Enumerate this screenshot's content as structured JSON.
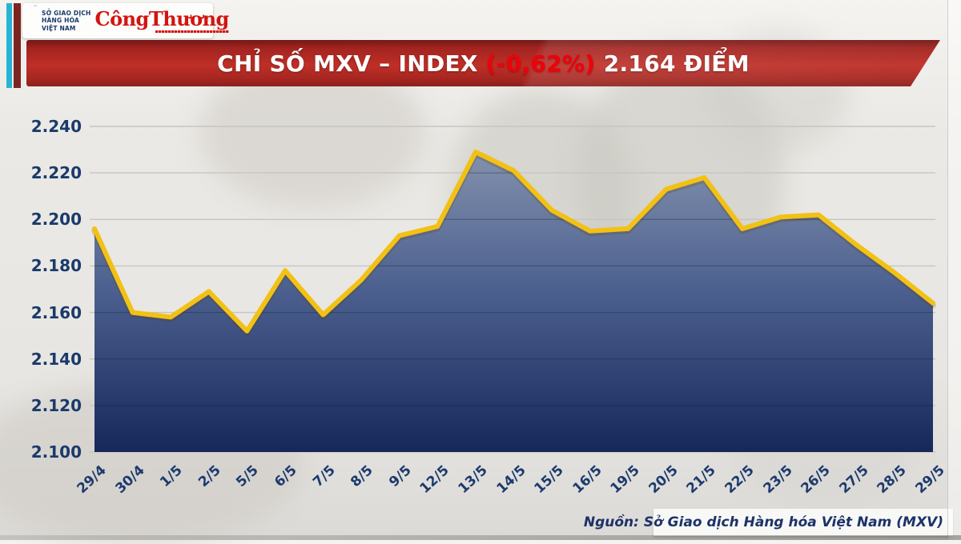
{
  "header": {
    "mxv_logo": {
      "lines": [
        "SỞ GIAO DỊCH",
        "HÀNG HÓA",
        "VIỆT NAM"
      ],
      "trademark": "™"
    },
    "congthuong_logo": "CôngThương"
  },
  "banner": {
    "title_prefix": "CHỈ SỐ MXV – INDEX",
    "change": "(-0,62%)",
    "value_text": "2.164 ĐIỂM",
    "change_color": "#ef0009",
    "banner_color": "#bf2f27"
  },
  "chart_data": {
    "type": "area",
    "title": "CHỈ SỐ MXV – INDEX (-0,62%) 2.164 ĐIỂM",
    "x": [
      "29/4",
      "30/4",
      "1/5",
      "2/5",
      "5/5",
      "6/5",
      "7/5",
      "8/5",
      "9/5",
      "12/5",
      "13/5",
      "14/5",
      "15/5",
      "16/5",
      "19/5",
      "20/5",
      "21/5",
      "22/5",
      "23/5",
      "26/5",
      "27/5",
      "28/5",
      "29/5"
    ],
    "series": [
      {
        "name": "MXV-Index",
        "values": [
          2196,
          2160,
          2158,
          2169,
          2152,
          2178,
          2159,
          2174,
          2193,
          2197,
          2229,
          2221,
          2204,
          2195,
          2196,
          2213,
          2218,
          2196,
          2201,
          2202,
          2189,
          2177,
          2164
        ]
      }
    ],
    "ylim": [
      2100,
      2240
    ],
    "ytick_step": 20,
    "ytick_labels": [
      "2.100",
      "2.120",
      "2.140",
      "2.160",
      "2.180",
      "2.200",
      "2.220",
      "2.240"
    ],
    "grid": "horizontal",
    "legend": "none",
    "line_color": "#f2c114",
    "fill_gradient": [
      "#8391ac",
      "#4d6190",
      "#16285a"
    ],
    "axis_label_color": "#1b3a6b"
  },
  "footer": {
    "source": "Nguồn: Sở Giao dịch Hàng hóa Việt Nam (MXV)"
  }
}
